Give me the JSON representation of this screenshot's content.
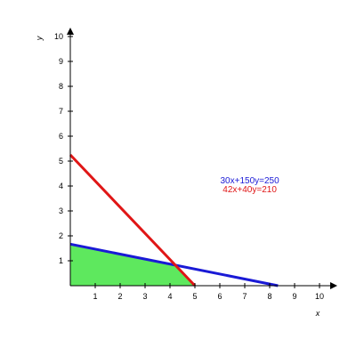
{
  "chart_data": {
    "type": "line",
    "xlabel": "x",
    "ylabel": "y",
    "xlim": [
      0,
      10
    ],
    "ylim": [
      0,
      10
    ],
    "x_ticks": [
      1,
      2,
      3,
      4,
      5,
      6,
      7,
      8,
      9,
      10
    ],
    "y_ticks": [
      1,
      2,
      3,
      4,
      5,
      6,
      7,
      8,
      9,
      10
    ],
    "grid": false,
    "series": [
      {
        "name": "30x+150y=250",
        "color": "#1a1ad6",
        "x": [
          0,
          8.333
        ],
        "y": [
          1.667,
          0
        ]
      },
      {
        "name": "42x+40y=210",
        "color": "#e01616",
        "x": [
          0,
          5
        ],
        "y": [
          5.25,
          0
        ]
      }
    ],
    "feasible_region": {
      "color": "#5ee85e",
      "x": [
        0,
        0,
        4.2,
        5
      ],
      "y": [
        0,
        1.667,
        0.827,
        0
      ]
    },
    "annotations": [
      {
        "text": "30x+150y=250",
        "color": "#1a1ad6",
        "x": 7.2,
        "y": 4.1
      },
      {
        "text": "42x+40y=210",
        "color": "#e01616",
        "x": 7.2,
        "y": 3.75
      }
    ]
  }
}
